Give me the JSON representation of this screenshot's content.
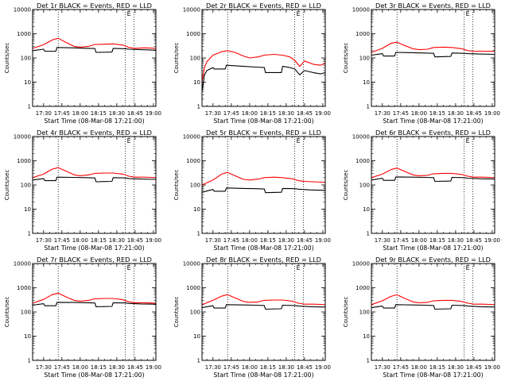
{
  "chart_data": [
    {
      "type": "line",
      "title": "Det 1r BLACK = Events, RED = LLD",
      "xlabel": "Start Time (08-Mar-08 17:21:00)",
      "ylabel": "Counts/sec",
      "yscale": "log",
      "ylim": [
        1,
        10000
      ],
      "xlim": [
        "17:21",
        "19:02"
      ],
      "xticks": [
        "17:30",
        "17:45",
        "18:00",
        "18:15",
        "18:30",
        "18:45",
        "19:00"
      ],
      "yticks": [
        "1",
        "10",
        "100",
        "1000",
        "10000"
      ],
      "vlines": [
        "17:42",
        "18:37",
        "18:44"
      ],
      "corner_mark": "E",
      "series": [
        {
          "color": "#ff0000",
          "x": [
            "17:21",
            "17:30",
            "17:37",
            "17:42",
            "17:48",
            "17:55",
            "18:00",
            "18:07",
            "18:12",
            "18:20",
            "18:27",
            "18:35",
            "18:40",
            "18:45",
            "18:52",
            "18:58",
            "19:02"
          ],
          "values": [
            250,
            350,
            550,
            650,
            450,
            300,
            280,
            300,
            360,
            370,
            380,
            340,
            270,
            250,
            260,
            255,
            250
          ]
        },
        {
          "color": "#000000",
          "x": [
            "17:21",
            "17:30",
            "17:31",
            "17:40",
            "17:41",
            "17:55",
            "18:05",
            "18:12",
            "18:13",
            "18:26",
            "18:27",
            "18:37",
            "18:40",
            "18:50",
            "19:02"
          ],
          "values": [
            200,
            230,
            190,
            190,
            270,
            260,
            250,
            245,
            170,
            175,
            250,
            240,
            230,
            220,
            210
          ]
        }
      ]
    },
    {
      "type": "line",
      "title": "Det 2r BLACK = Events, RED = LLD",
      "xlabel": "Start Time (08-Mar-08 17:21:00)",
      "ylabel": "Counts/sec",
      "yscale": "log",
      "ylim": [
        1,
        10000
      ],
      "xlim": [
        "17:21",
        "19:02"
      ],
      "xticks": [
        "17:30",
        "17:45",
        "18:00",
        "18:15",
        "18:30",
        "18:45",
        "19:00"
      ],
      "yticks": [
        "1",
        "10",
        "100",
        "1000",
        "10000"
      ],
      "vlines": [
        "17:42",
        "18:37",
        "18:44"
      ],
      "corner_mark": "E",
      "series": [
        {
          "color": "#ff0000",
          "x": [
            "17:21",
            "17:23",
            "17:25",
            "17:30",
            "17:37",
            "17:42",
            "17:48",
            "17:55",
            "18:00",
            "18:07",
            "18:12",
            "18:20",
            "18:27",
            "18:33",
            "18:37",
            "18:41",
            "18:45",
            "18:52",
            "18:58",
            "19:02"
          ],
          "values": [
            10,
            40,
            70,
            130,
            180,
            200,
            170,
            120,
            100,
            110,
            130,
            140,
            130,
            110,
            80,
            45,
            75,
            55,
            50,
            60
          ]
        },
        {
          "color": "#000000",
          "x": [
            "17:21",
            "17:23",
            "17:25",
            "17:30",
            "17:31",
            "17:40",
            "17:41",
            "17:55",
            "18:05",
            "18:12",
            "18:13",
            "18:26",
            "18:27",
            "18:33",
            "18:37",
            "18:41",
            "18:45",
            "18:52",
            "18:58",
            "19:02"
          ],
          "values": [
            4,
            20,
            30,
            40,
            35,
            35,
            50,
            45,
            42,
            40,
            25,
            25,
            45,
            40,
            35,
            20,
            30,
            25,
            22,
            25
          ]
        }
      ]
    },
    {
      "type": "line",
      "title": "Det 3r BLACK = Events, RED = LLD",
      "xlabel": "Start Time (08-Mar-08 17:21:00)",
      "ylabel": "Counts/sec",
      "yscale": "log",
      "ylim": [
        1,
        10000
      ],
      "xlim": [
        "17:21",
        "19:02"
      ],
      "xticks": [
        "17:30",
        "17:45",
        "18:00",
        "18:15",
        "18:30",
        "18:45",
        "19:00"
      ],
      "yticks": [
        "1",
        "10",
        "100",
        "1000",
        "10000"
      ],
      "vlines": [
        "17:42",
        "18:37",
        "18:44"
      ],
      "corner_mark": "E",
      "series": [
        {
          "color": "#ff0000",
          "x": [
            "17:21",
            "17:30",
            "17:37",
            "17:42",
            "17:48",
            "17:55",
            "18:00",
            "18:07",
            "18:12",
            "18:20",
            "18:27",
            "18:35",
            "18:40",
            "18:45",
            "18:52",
            "18:58",
            "19:02"
          ],
          "values": [
            170,
            250,
            400,
            450,
            330,
            240,
            220,
            230,
            270,
            280,
            270,
            240,
            200,
            190,
            190,
            190,
            190
          ]
        },
        {
          "color": "#000000",
          "x": [
            "17:21",
            "17:30",
            "17:31",
            "17:40",
            "17:41",
            "17:55",
            "18:05",
            "18:12",
            "18:13",
            "18:26",
            "18:27",
            "18:37",
            "18:40",
            "18:50",
            "19:02"
          ],
          "values": [
            130,
            150,
            120,
            120,
            170,
            165,
            160,
            155,
            110,
            115,
            160,
            155,
            150,
            145,
            140
          ]
        }
      ]
    },
    {
      "type": "line",
      "title": "Det 4r BLACK = Events, RED = LLD",
      "xlabel": "Start Time (08-Mar-08 17:21:00)",
      "ylabel": "Counts/sec",
      "yscale": "log",
      "ylim": [
        1,
        10000
      ],
      "xlim": [
        "17:21",
        "19:02"
      ],
      "xticks": [
        "17:30",
        "17:45",
        "18:00",
        "18:15",
        "18:30",
        "18:45",
        "19:00"
      ],
      "yticks": [
        "1",
        "10",
        "100",
        "1000",
        "10000"
      ],
      "vlines": [
        "17:42",
        "18:37",
        "18:44"
      ],
      "corner_mark": "E",
      "series": [
        {
          "color": "#ff0000",
          "x": [
            "17:21",
            "17:30",
            "17:37",
            "17:42",
            "17:48",
            "17:55",
            "18:00",
            "18:07",
            "18:12",
            "18:20",
            "18:27",
            "18:35",
            "18:40",
            "18:45",
            "18:52",
            "18:58",
            "19:02"
          ],
          "values": [
            200,
            280,
            450,
            520,
            380,
            260,
            240,
            260,
            300,
            310,
            310,
            280,
            230,
            210,
            210,
            205,
            200
          ]
        },
        {
          "color": "#000000",
          "x": [
            "17:21",
            "17:30",
            "17:31",
            "17:40",
            "17:41",
            "17:55",
            "18:05",
            "18:12",
            "18:13",
            "18:26",
            "18:27",
            "18:37",
            "18:40",
            "18:50",
            "19:02"
          ],
          "values": [
            160,
            185,
            150,
            150,
            210,
            205,
            200,
            195,
            135,
            140,
            200,
            195,
            185,
            175,
            170
          ]
        }
      ]
    },
    {
      "type": "line",
      "title": "Det 5r BLACK = Events, RED = LLD",
      "xlabel": "Start Time (08-Mar-08 17:21:00)",
      "ylabel": "Counts/sec",
      "yscale": "log",
      "ylim": [
        1,
        10000
      ],
      "xlim": [
        "17:21",
        "19:02"
      ],
      "xticks": [
        "17:30",
        "17:45",
        "18:00",
        "18:15",
        "18:30",
        "18:45",
        "19:00"
      ],
      "yticks": [
        "1",
        "10",
        "100",
        "1000",
        "10000"
      ],
      "vlines": [
        "17:42",
        "18:37",
        "18:44"
      ],
      "corner_mark": "E",
      "series": [
        {
          "color": "#ff0000",
          "x": [
            "17:21",
            "17:30",
            "17:37",
            "17:42",
            "17:48",
            "17:55",
            "18:00",
            "18:07",
            "18:12",
            "18:20",
            "18:27",
            "18:35",
            "18:40",
            "18:45",
            "18:52",
            "18:58",
            "19:02"
          ],
          "values": [
            100,
            160,
            280,
            330,
            240,
            170,
            160,
            175,
            200,
            210,
            200,
            180,
            150,
            140,
            135,
            130,
            130
          ]
        },
        {
          "color": "#000000",
          "x": [
            "17:21",
            "17:30",
            "17:31",
            "17:40",
            "17:41",
            "17:55",
            "18:05",
            "18:12",
            "18:13",
            "18:26",
            "18:27",
            "18:37",
            "18:40",
            "18:50",
            "19:02"
          ],
          "values": [
            50,
            65,
            55,
            55,
            75,
            72,
            70,
            68,
            48,
            50,
            72,
            70,
            67,
            62,
            60
          ]
        }
      ]
    },
    {
      "type": "line",
      "title": "Det 6r BLACK = Events, RED = LLD",
      "xlabel": "Start Time (08-Mar-08 17:21:00)",
      "ylabel": "Counts/sec",
      "yscale": "log",
      "ylim": [
        1,
        10000
      ],
      "xlim": [
        "17:21",
        "19:02"
      ],
      "xticks": [
        "17:30",
        "17:45",
        "18:00",
        "18:15",
        "18:30",
        "18:45",
        "19:00"
      ],
      "yticks": [
        "1",
        "10",
        "100",
        "1000",
        "10000"
      ],
      "vlines": [
        "17:42",
        "18:37",
        "18:44"
      ],
      "corner_mark": "E",
      "series": [
        {
          "color": "#ff0000",
          "x": [
            "17:21",
            "17:30",
            "17:37",
            "17:42",
            "17:48",
            "17:55",
            "18:00",
            "18:07",
            "18:12",
            "18:20",
            "18:27",
            "18:35",
            "18:40",
            "18:45",
            "18:52",
            "18:58",
            "19:02"
          ],
          "values": [
            200,
            280,
            430,
            500,
            370,
            260,
            240,
            250,
            290,
            300,
            300,
            270,
            230,
            210,
            210,
            205,
            200
          ]
        },
        {
          "color": "#000000",
          "x": [
            "17:21",
            "17:30",
            "17:31",
            "17:40",
            "17:41",
            "17:55",
            "18:05",
            "18:12",
            "18:13",
            "18:26",
            "18:27",
            "18:37",
            "18:40",
            "18:50",
            "19:02"
          ],
          "values": [
            160,
            190,
            155,
            155,
            215,
            210,
            205,
            200,
            140,
            145,
            205,
            200,
            190,
            180,
            175
          ]
        }
      ]
    },
    {
      "type": "line",
      "title": "Det 7r BLACK = Events, RED = LLD",
      "xlabel": "Start Time (08-Mar-08 17:21:00)",
      "ylabel": "Counts/sec",
      "yscale": "log",
      "ylim": [
        1,
        10000
      ],
      "xlim": [
        "17:21",
        "19:02"
      ],
      "xticks": [
        "17:30",
        "17:45",
        "18:00",
        "18:15",
        "18:30",
        "18:45",
        "19:00"
      ],
      "yticks": [
        "1",
        "10",
        "100",
        "1000",
        "10000"
      ],
      "vlines": [
        "17:42",
        "18:37",
        "18:44"
      ],
      "corner_mark": "E",
      "series": [
        {
          "color": "#ff0000",
          "x": [
            "17:21",
            "17:30",
            "17:37",
            "17:42",
            "17:48",
            "17:55",
            "18:00",
            "18:07",
            "18:12",
            "18:20",
            "18:27",
            "18:35",
            "18:40",
            "18:45",
            "18:52",
            "18:58",
            "19:02"
          ],
          "values": [
            230,
            330,
            520,
            600,
            430,
            300,
            280,
            300,
            350,
            360,
            360,
            320,
            260,
            240,
            240,
            235,
            230
          ]
        },
        {
          "color": "#000000",
          "x": [
            "17:21",
            "17:30",
            "17:31",
            "17:40",
            "17:41",
            "17:55",
            "18:05",
            "18:12",
            "18:13",
            "18:26",
            "18:27",
            "18:37",
            "18:40",
            "18:50",
            "19:02"
          ],
          "values": [
            190,
            220,
            180,
            180,
            250,
            245,
            240,
            235,
            165,
            170,
            240,
            235,
            225,
            215,
            210
          ]
        }
      ]
    },
    {
      "type": "line",
      "title": "Det 8r BLACK = Events, RED = LLD",
      "xlabel": "Start Time (08-Mar-08 17:21:00)",
      "ylabel": "Counts/sec",
      "yscale": "log",
      "ylim": [
        1,
        10000
      ],
      "xlim": [
        "17:21",
        "19:02"
      ],
      "xticks": [
        "17:30",
        "17:45",
        "18:00",
        "18:15",
        "18:30",
        "18:45",
        "19:00"
      ],
      "yticks": [
        "1",
        "10",
        "100",
        "1000",
        "10000"
      ],
      "vlines": [
        "17:42",
        "18:37",
        "18:44"
      ],
      "corner_mark": "E",
      "series": [
        {
          "color": "#ff0000",
          "x": [
            "17:21",
            "17:30",
            "17:37",
            "17:42",
            "17:48",
            "17:55",
            "18:00",
            "18:07",
            "18:12",
            "18:20",
            "18:27",
            "18:35",
            "18:40",
            "18:45",
            "18:52",
            "18:58",
            "19:02"
          ],
          "values": [
            200,
            300,
            450,
            520,
            380,
            270,
            250,
            260,
            300,
            310,
            310,
            280,
            230,
            210,
            210,
            205,
            200
          ]
        },
        {
          "color": "#000000",
          "x": [
            "17:21",
            "17:30",
            "17:31",
            "17:40",
            "17:41",
            "17:55",
            "18:05",
            "18:12",
            "18:13",
            "18:26",
            "18:27",
            "18:37",
            "18:40",
            "18:50",
            "19:02"
          ],
          "values": [
            150,
            180,
            145,
            145,
            200,
            195,
            190,
            185,
            130,
            135,
            190,
            185,
            175,
            165,
            160
          ]
        }
      ]
    },
    {
      "type": "line",
      "title": "Det 9r BLACK = Events, RED = LLD",
      "xlabel": "Start Time (08-Mar-08 17:21:00)",
      "ylabel": "Counts/sec",
      "yscale": "log",
      "ylim": [
        1,
        10000
      ],
      "xlim": [
        "17:21",
        "19:02"
      ],
      "xticks": [
        "17:30",
        "17:45",
        "18:00",
        "18:15",
        "18:30",
        "18:45",
        "19:00"
      ],
      "yticks": [
        "1",
        "10",
        "100",
        "1000",
        "10000"
      ],
      "vlines": [
        "17:42",
        "18:37",
        "18:44"
      ],
      "corner_mark": "E",
      "series": [
        {
          "color": "#ff0000",
          "x": [
            "17:21",
            "17:30",
            "17:37",
            "17:42",
            "17:48",
            "17:55",
            "18:00",
            "18:07",
            "18:12",
            "18:20",
            "18:27",
            "18:35",
            "18:40",
            "18:45",
            "18:52",
            "18:58",
            "19:02"
          ],
          "values": [
            200,
            290,
            440,
            510,
            370,
            260,
            240,
            250,
            290,
            300,
            300,
            270,
            230,
            210,
            210,
            205,
            200
          ]
        },
        {
          "color": "#000000",
          "x": [
            "17:21",
            "17:30",
            "17:31",
            "17:40",
            "17:41",
            "17:55",
            "18:05",
            "18:12",
            "18:13",
            "18:26",
            "18:27",
            "18:37",
            "18:40",
            "18:50",
            "19:02"
          ],
          "values": [
            150,
            175,
            145,
            145,
            200,
            195,
            190,
            185,
            130,
            135,
            190,
            185,
            175,
            165,
            160
          ]
        }
      ]
    }
  ]
}
